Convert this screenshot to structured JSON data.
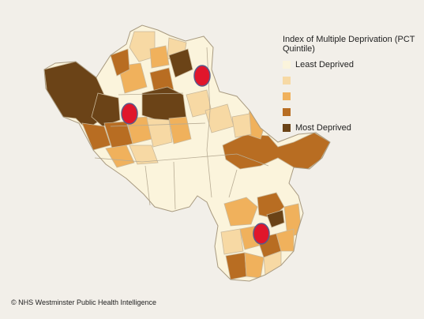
{
  "legend": {
    "title": "Index of Multiple Deprivation (PCT Quintile)",
    "items": [
      {
        "label": "Least Deprived",
        "color": "#fbf4dc"
      },
      {
        "label": "",
        "color": "#f7d9a4"
      },
      {
        "label": "",
        "color": "#f0b15c"
      },
      {
        "label": "",
        "color": "#b86d22"
      },
      {
        "label": "Most Deprived",
        "color": "#6b4317"
      }
    ]
  },
  "markers": {
    "count": 3,
    "color": "#e0162b",
    "outline": "#5a5a8a"
  },
  "credit": "© NHS Westminster Public Health Intelligence"
}
